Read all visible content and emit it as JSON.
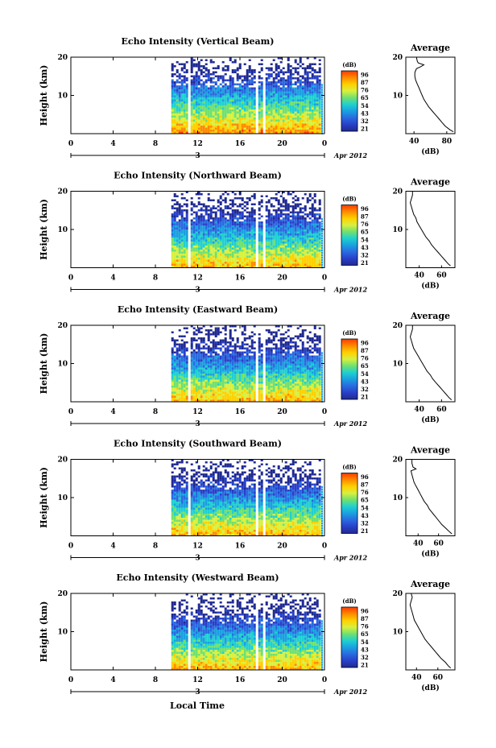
{
  "figure": {
    "xlabel": "Local Time",
    "ylabel": "Height (km)",
    "date_label": "Apr 2012",
    "day_label": "3",
    "average_title": "Average",
    "average_xlabel": "(dB)",
    "colorbar_title": "(dB)",
    "colorbar_ticks": [
      "96",
      "87",
      "76",
      "65",
      "54",
      "43",
      "32",
      "21"
    ],
    "colorbar_colors": [
      "#ff3a00",
      "#ff8a00",
      "#ffd000",
      "#d8f040",
      "#70e070",
      "#20d0d0",
      "#1aa0e0",
      "#2a6ae0",
      "#2840c8",
      "#202a90"
    ],
    "x_ticks": [
      "0",
      "4",
      "8",
      "12",
      "16",
      "20",
      "0"
    ],
    "y_ticks": [
      "20",
      "10"
    ],
    "avg_x_ticks_panel1": [
      "40",
      "80"
    ],
    "avg_x_ticks_other": [
      "40",
      "60"
    ]
  },
  "chart_data": [
    {
      "type": "heatmap",
      "title": "Echo Intensity (Vertical Beam)",
      "xlabel": "Local Time",
      "ylabel": "Height (km)",
      "xlim": [
        0,
        24
      ],
      "ylim": [
        0,
        20
      ],
      "data_start_hour": 9.5,
      "data_end_hour": 24,
      "gaps_hours": [
        [
          11.0,
          11.3
        ],
        [
          17.5,
          17.7
        ],
        [
          18.0,
          18.2
        ]
      ],
      "colorbar_range_db": [
        21,
        96
      ],
      "profile": {
        "name": "Average",
        "xlim": [
          30,
          90
        ],
        "xticks": [
          40,
          80
        ],
        "height": [
          0.5,
          1,
          2,
          3,
          4,
          5,
          6,
          7,
          8,
          9,
          10,
          11,
          12,
          13,
          14,
          15,
          16,
          17,
          17.5,
          18,
          18.5,
          19,
          20
        ],
        "db": [
          88,
          84,
          78,
          74,
          70,
          66,
          62,
          58,
          55,
          52,
          50,
          48,
          46,
          44,
          42,
          41,
          41,
          43,
          48,
          52,
          45,
          44,
          43
        ]
      }
    },
    {
      "type": "heatmap",
      "title": "Echo Intensity (Northward Beam)",
      "xlabel": "Local Time",
      "ylabel": "Height (km)",
      "xlim": [
        0,
        24
      ],
      "ylim": [
        0,
        20
      ],
      "data_start_hour": 9.5,
      "data_end_hour": 24,
      "gaps_hours": [
        [
          11.0,
          11.3
        ],
        [
          17.5,
          17.7
        ],
        [
          18.0,
          18.2
        ]
      ],
      "colorbar_range_db": [
        21,
        96
      ],
      "profile": {
        "name": "Average",
        "xlim": [
          28,
          72
        ],
        "xticks": [
          40,
          60
        ],
        "height": [
          0.5,
          1,
          2,
          3,
          4,
          5,
          6,
          7,
          8,
          9,
          10,
          11,
          12,
          13,
          14,
          15,
          16,
          17,
          18,
          19,
          20
        ],
        "db": [
          68,
          66,
          63,
          60,
          57,
          54,
          51,
          49,
          46,
          44,
          42,
          40,
          38,
          37,
          35,
          34,
          33,
          32,
          33,
          34,
          34
        ]
      }
    },
    {
      "type": "heatmap",
      "title": "Echo Intensity (Eastward Beam)",
      "xlabel": "Local Time",
      "ylabel": "Height (km)",
      "xlim": [
        0,
        24
      ],
      "ylim": [
        0,
        20
      ],
      "data_start_hour": 9.5,
      "data_end_hour": 24,
      "gaps_hours": [
        [
          11.0,
          11.3
        ],
        [
          17.5,
          17.7
        ],
        [
          18.0,
          18.2
        ]
      ],
      "colorbar_range_db": [
        21,
        96
      ],
      "profile": {
        "name": "Average",
        "xlim": [
          28,
          72
        ],
        "xticks": [
          40,
          60
        ],
        "height": [
          0.5,
          1,
          2,
          3,
          4,
          5,
          6,
          7,
          8,
          9,
          10,
          11,
          12,
          13,
          14,
          15,
          16,
          17,
          18,
          19,
          20
        ],
        "db": [
          69,
          67,
          64,
          61,
          58,
          55,
          52,
          50,
          47,
          45,
          43,
          41,
          39,
          37,
          35,
          34,
          33,
          32,
          33,
          34,
          34
        ]
      }
    },
    {
      "type": "heatmap",
      "title": "Echo Intensity (Southward Beam)",
      "xlabel": "Local Time",
      "ylabel": "Height (km)",
      "xlim": [
        0,
        24
      ],
      "ylim": [
        0,
        20
      ],
      "data_start_hour": 9.5,
      "data_end_hour": 24,
      "gaps_hours": [
        [
          11.0,
          11.3
        ],
        [
          17.5,
          17.7
        ],
        [
          18.0,
          18.2
        ]
      ],
      "colorbar_range_db": [
        21,
        96
      ],
      "profile": {
        "name": "Average",
        "xlim": [
          28,
          76
        ],
        "xticks": [
          40,
          60
        ],
        "height": [
          0.5,
          1,
          2,
          3,
          4,
          5,
          6,
          7,
          8,
          9,
          10,
          11,
          12,
          13,
          14,
          15,
          16,
          17,
          17.5,
          18,
          19,
          20
        ],
        "db": [
          73,
          71,
          67,
          63,
          60,
          57,
          54,
          51,
          49,
          46,
          44,
          42,
          40,
          38,
          36,
          35,
          34,
          33,
          38,
          35,
          34,
          34
        ]
      }
    },
    {
      "type": "heatmap",
      "title": "Echo Intensity (Westward Beam)",
      "xlabel": "Local Time",
      "ylabel": "Height (km)",
      "xlim": [
        0,
        24
      ],
      "ylim": [
        0,
        20
      ],
      "data_start_hour": 9.5,
      "data_end_hour": 24,
      "gaps_hours": [
        [
          11.0,
          11.3
        ],
        [
          17.5,
          17.7
        ],
        [
          18.0,
          18.2
        ]
      ],
      "colorbar_range_db": [
        21,
        96
      ],
      "profile": {
        "name": "Average",
        "xlim": [
          30,
          76
        ],
        "xticks": [
          40,
          60
        ],
        "height": [
          0.5,
          1,
          2,
          3,
          4,
          5,
          6,
          7,
          8,
          9,
          10,
          11,
          12,
          13,
          14,
          15,
          16,
          17,
          18,
          19,
          20
        ],
        "db": [
          72,
          70,
          67,
          63,
          60,
          57,
          54,
          51,
          48,
          46,
          44,
          42,
          40,
          38,
          37,
          36,
          35,
          34,
          35,
          36,
          35
        ]
      }
    }
  ]
}
